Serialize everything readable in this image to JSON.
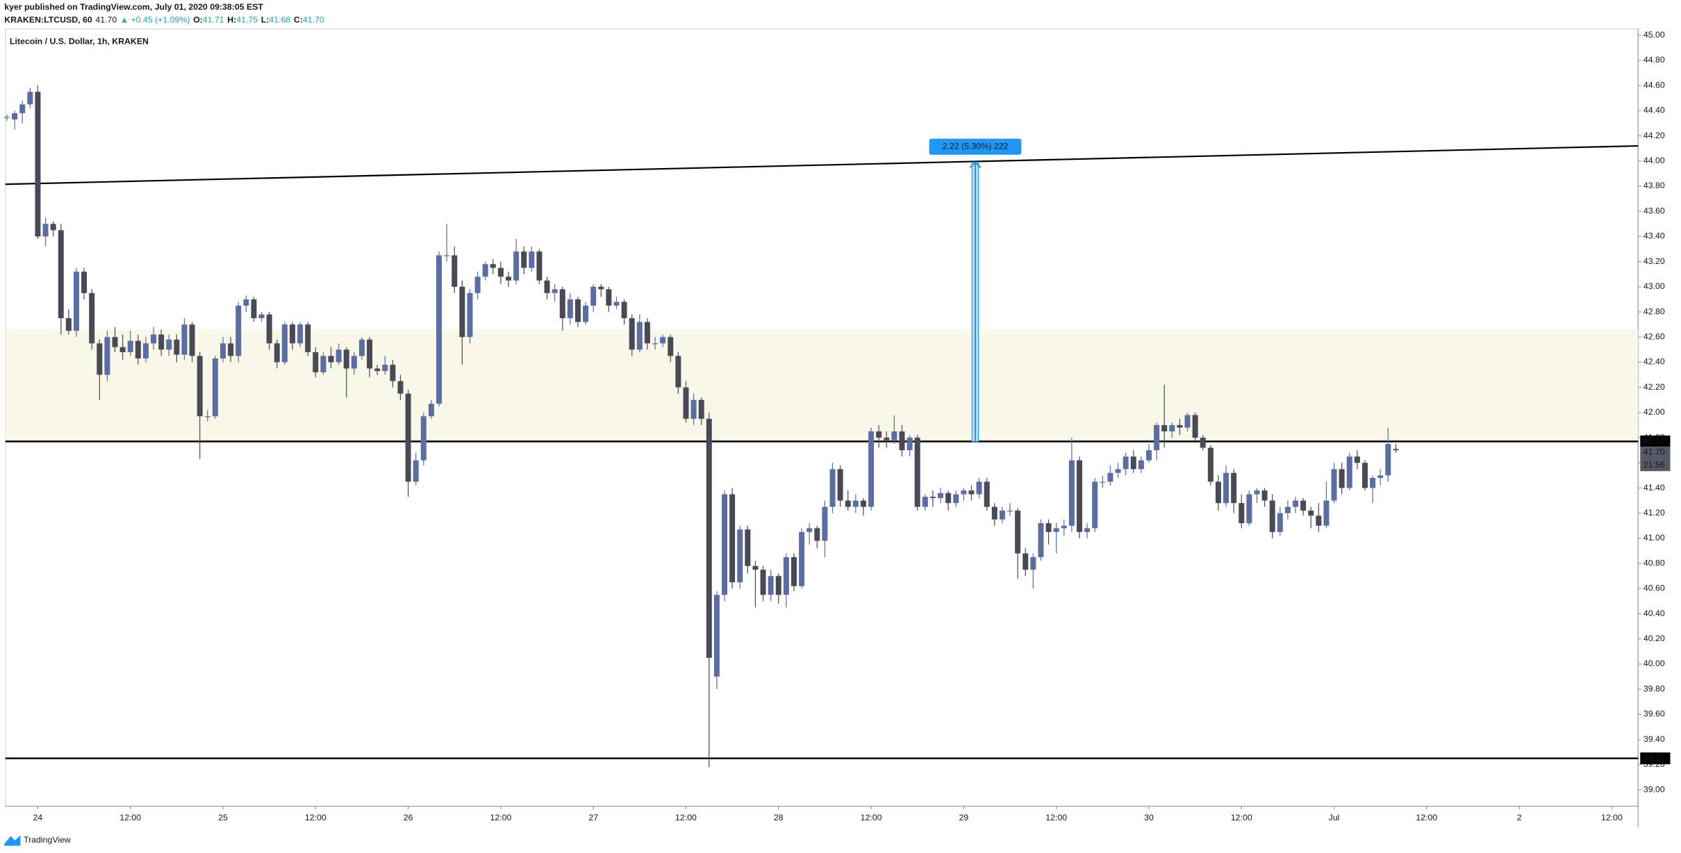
{
  "header": {
    "publisher": "kyer published on TradingView.com, July 01, 2020 09:38:05 EST",
    "symbol": "KRAKEN:LTCUSD, 60",
    "last": "41.70",
    "change": "▲ +0.45 (+1.09%)",
    "ohlc": [
      {
        "label": "O:",
        "value": "41.71"
      },
      {
        "label": "H:",
        "value": "41.75"
      },
      {
        "label": "L:",
        "value": "41.68"
      },
      {
        "label": "C:",
        "value": "41.70"
      }
    ]
  },
  "footer": {
    "brand": "TradingView"
  },
  "chart_data": {
    "type": "candlestick",
    "title": "Litecoin / U.S. Dollar, 1h, KRAKEN",
    "up_color": "#5b6ea3",
    "down_color": "#4a4a56",
    "grid": false,
    "xlim": [
      -4.2,
      207.4
    ],
    "ylim": [
      38.87,
      45.05
    ],
    "xticks": [
      {
        "value": 0,
        "label": "24"
      },
      {
        "value": 12,
        "label": "12:00"
      },
      {
        "value": 24,
        "label": "25"
      },
      {
        "value": 36,
        "label": "12:00"
      },
      {
        "value": 48,
        "label": "26"
      },
      {
        "value": 60,
        "label": "12:00"
      },
      {
        "value": 72,
        "label": "27"
      },
      {
        "value": 84,
        "label": "12:00"
      },
      {
        "value": 96,
        "label": "28"
      },
      {
        "value": 108,
        "label": "12:00"
      },
      {
        "value": 120,
        "label": "29"
      },
      {
        "value": 132,
        "label": "12:00"
      },
      {
        "value": 144,
        "label": "30"
      },
      {
        "value": 156,
        "label": "12:00"
      },
      {
        "value": 168,
        "label": "Jul"
      },
      {
        "value": 180,
        "label": "12:00"
      },
      {
        "value": 192,
        "label": "2"
      },
      {
        "value": 204,
        "label": "12:00"
      }
    ],
    "yticks": [
      {
        "value": 39,
        "label": "39.00"
      },
      {
        "value": 39.2,
        "label": "39.20"
      },
      {
        "value": 39.4,
        "label": "39.40"
      },
      {
        "value": 39.6,
        "label": "39.60"
      },
      {
        "value": 39.8,
        "label": "39.80"
      },
      {
        "value": 40,
        "label": "40.00"
      },
      {
        "value": 40.2,
        "label": "40.20"
      },
      {
        "value": 40.4,
        "label": "40.40"
      },
      {
        "value": 40.6,
        "label": "40.60"
      },
      {
        "value": 40.8,
        "label": "40.80"
      },
      {
        "value": 41,
        "label": "41.00"
      },
      {
        "value": 41.2,
        "label": "41.20"
      },
      {
        "value": 41.4,
        "label": "41.40"
      },
      {
        "value": 41.6,
        "label": "41.60"
      },
      {
        "value": 41.8,
        "label": "41.80"
      },
      {
        "value": 42,
        "label": "42.00"
      },
      {
        "value": 42.2,
        "label": "42.20"
      },
      {
        "value": 42.4,
        "label": "42.40"
      },
      {
        "value": 42.6,
        "label": "42.60"
      },
      {
        "value": 42.8,
        "label": "42.80"
      },
      {
        "value": 43,
        "label": "43.00"
      },
      {
        "value": 43.2,
        "label": "43.20"
      },
      {
        "value": 43.4,
        "label": "43.40"
      },
      {
        "value": 43.6,
        "label": "43.60"
      },
      {
        "value": 43.8,
        "label": "43.80"
      },
      {
        "value": 44,
        "label": "44.00"
      },
      {
        "value": 44.2,
        "label": "44.20"
      },
      {
        "value": 44.4,
        "label": "44.40"
      },
      {
        "value": 44.6,
        "label": "44.60"
      },
      {
        "value": 44.8,
        "label": "44.80"
      },
      {
        "value": 45,
        "label": "45.00"
      }
    ],
    "zone": [
      41.77,
      42.66
    ],
    "hlines": [
      41.77,
      39.25
    ],
    "trendline": {
      "x": [
        -4.2,
        207.4
      ],
      "y": [
        43.815,
        44.12
      ]
    },
    "measure": {
      "x": 121.5,
      "from": 41.77,
      "to": 43.99,
      "label": "2.22 (5.30%) 222"
    },
    "last_price": {
      "value": 41.7,
      "label": "41.70"
    },
    "countdown": "21:56",
    "x": [
      -4,
      -3,
      -2,
      -1,
      0,
      1,
      2,
      3,
      4,
      5,
      6,
      7,
      8,
      9,
      10,
      11,
      12,
      13,
      14,
      15,
      16,
      17,
      18,
      19,
      20,
      21,
      22,
      23,
      24,
      25,
      26,
      27,
      28,
      29,
      30,
      31,
      32,
      33,
      34,
      35,
      36,
      37,
      38,
      39,
      40,
      41,
      42,
      43,
      44,
      45,
      46,
      47,
      48,
      49,
      50,
      51,
      52,
      53,
      54,
      55,
      56,
      57,
      58,
      59,
      60,
      61,
      62,
      63,
      64,
      65,
      66,
      67,
      68,
      69,
      70,
      71,
      72,
      73,
      74,
      75,
      76,
      77,
      78,
      79,
      80,
      81,
      82,
      83,
      84,
      85,
      86,
      87,
      88,
      89,
      90,
      91,
      92,
      93,
      94,
      95,
      96,
      97,
      98,
      99,
      100,
      101,
      102,
      103,
      104,
      105,
      106,
      107,
      108,
      109,
      110,
      111,
      112,
      113,
      114,
      115,
      116,
      117,
      118,
      119,
      120,
      121,
      122,
      123,
      124,
      125,
      126,
      127,
      128,
      129,
      130,
      131,
      132,
      133,
      134,
      135,
      136,
      137,
      138,
      139,
      140,
      141,
      142,
      143,
      144,
      145,
      146,
      147,
      148,
      149,
      150,
      151,
      152,
      153,
      154,
      155,
      156,
      157,
      158,
      159,
      160,
      161,
      162,
      163,
      164,
      165,
      166,
      167,
      168,
      169,
      170,
      171,
      172,
      173,
      174,
      175,
      176
    ],
    "candles": [
      [
        44.35,
        44.37,
        44.32,
        44.35
      ],
      [
        44.33,
        44.4,
        44.25,
        44.38
      ],
      [
        44.38,
        44.48,
        44.3,
        44.45
      ],
      [
        44.45,
        44.58,
        44.42,
        44.55
      ],
      [
        44.55,
        44.6,
        43.38,
        43.4
      ],
      [
        43.4,
        43.55,
        43.32,
        43.5
      ],
      [
        43.5,
        43.52,
        43.4,
        43.45
      ],
      [
        43.45,
        43.5,
        42.62,
        42.75
      ],
      [
        42.75,
        42.82,
        42.62,
        42.65
      ],
      [
        42.65,
        43.15,
        42.6,
        43.12
      ],
      [
        43.12,
        43.15,
        42.9,
        42.95
      ],
      [
        42.95,
        42.98,
        42.5,
        42.55
      ],
      [
        42.55,
        42.58,
        42.1,
        42.3
      ],
      [
        42.3,
        42.65,
        42.25,
        42.6
      ],
      [
        42.6,
        42.68,
        42.48,
        42.52
      ],
      [
        42.52,
        42.62,
        42.42,
        42.48
      ],
      [
        42.48,
        42.65,
        42.45,
        42.57
      ],
      [
        42.57,
        42.62,
        42.38,
        42.43
      ],
      [
        42.43,
        42.6,
        42.4,
        42.55
      ],
      [
        42.55,
        42.68,
        42.5,
        42.62
      ],
      [
        42.62,
        42.66,
        42.45,
        42.5
      ],
      [
        42.5,
        42.62,
        42.45,
        42.58
      ],
      [
        42.58,
        42.62,
        42.4,
        42.46
      ],
      [
        42.46,
        42.75,
        42.42,
        42.7
      ],
      [
        42.7,
        42.72,
        42.4,
        42.45
      ],
      [
        42.45,
        42.48,
        41.63,
        41.97
      ],
      [
        41.97,
        42.02,
        41.93,
        41.97
      ],
      [
        41.97,
        42.45,
        41.95,
        42.43
      ],
      [
        42.43,
        42.6,
        42.4,
        42.55
      ],
      [
        42.55,
        42.6,
        42.4,
        42.45
      ],
      [
        42.45,
        42.88,
        42.4,
        42.85
      ],
      [
        42.85,
        42.93,
        42.8,
        42.9
      ],
      [
        42.9,
        42.92,
        42.72,
        42.75
      ],
      [
        42.75,
        42.8,
        42.72,
        42.78
      ],
      [
        42.78,
        42.8,
        42.5,
        42.55
      ],
      [
        42.55,
        42.58,
        42.35,
        42.4
      ],
      [
        42.4,
        42.72,
        42.38,
        42.7
      ],
      [
        42.7,
        42.72,
        42.5,
        42.55
      ],
      [
        42.55,
        42.72,
        42.52,
        42.7
      ],
      [
        42.7,
        42.72,
        42.45,
        42.48
      ],
      [
        42.48,
        42.52,
        42.28,
        42.32
      ],
      [
        42.32,
        42.48,
        42.3,
        42.45
      ],
      [
        42.45,
        42.52,
        42.35,
        42.4
      ],
      [
        42.4,
        42.55,
        42.38,
        42.5
      ],
      [
        42.5,
        42.52,
        42.12,
        42.35
      ],
      [
        42.35,
        42.48,
        42.3,
        42.45
      ],
      [
        42.45,
        42.6,
        42.42,
        42.58
      ],
      [
        42.58,
        42.6,
        42.28,
        42.35
      ],
      [
        42.35,
        42.38,
        42.3,
        42.33
      ],
      [
        42.33,
        42.45,
        42.3,
        42.38
      ],
      [
        42.38,
        42.42,
        42.2,
        42.25
      ],
      [
        42.25,
        42.3,
        42.1,
        42.15
      ],
      [
        42.15,
        42.18,
        41.33,
        41.45
      ],
      [
        41.45,
        41.68,
        41.42,
        41.62
      ],
      [
        41.62,
        42.0,
        41.58,
        41.97
      ],
      [
        41.97,
        42.1,
        41.95,
        42.07
      ],
      [
        42.07,
        43.28,
        42.05,
        43.25
      ],
      [
        43.25,
        43.5,
        43.2,
        43.25
      ],
      [
        43.25,
        43.32,
        42.95,
        43.0
      ],
      [
        43.0,
        43.05,
        42.38,
        42.6
      ],
      [
        42.6,
        42.98,
        42.55,
        42.95
      ],
      [
        42.95,
        43.12,
        42.9,
        43.08
      ],
      [
        43.08,
        43.2,
        43.05,
        43.18
      ],
      [
        43.18,
        43.22,
        43.1,
        43.15
      ],
      [
        43.15,
        43.2,
        43.02,
        43.08
      ],
      [
        43.08,
        43.12,
        43.0,
        43.05
      ],
      [
        43.05,
        43.38,
        43.02,
        43.28
      ],
      [
        43.28,
        43.32,
        43.1,
        43.15
      ],
      [
        43.15,
        43.32,
        43.12,
        43.28
      ],
      [
        43.28,
        43.3,
        43.02,
        43.05
      ],
      [
        43.05,
        43.08,
        42.9,
        42.95
      ],
      [
        42.95,
        43.02,
        42.88,
        42.98
      ],
      [
        42.98,
        43.0,
        42.65,
        42.75
      ],
      [
        42.75,
        42.95,
        42.7,
        42.9
      ],
      [
        42.9,
        42.92,
        42.68,
        42.72
      ],
      [
        42.72,
        42.88,
        42.7,
        42.85
      ],
      [
        42.85,
        43.02,
        42.8,
        43.0
      ],
      [
        43.0,
        43.02,
        42.92,
        42.98
      ],
      [
        42.98,
        43.0,
        42.8,
        42.85
      ],
      [
        42.85,
        42.92,
        42.82,
        42.88
      ],
      [
        42.88,
        42.9,
        42.7,
        42.75
      ],
      [
        42.75,
        42.78,
        42.45,
        42.5
      ],
      [
        42.5,
        42.78,
        42.48,
        42.72
      ],
      [
        42.72,
        42.75,
        42.5,
        42.55
      ],
      [
        42.55,
        42.6,
        42.5,
        42.55
      ],
      [
        42.55,
        42.62,
        42.52,
        42.6
      ],
      [
        42.6,
        42.62,
        42.4,
        42.45
      ],
      [
        42.45,
        42.48,
        42.15,
        42.2
      ],
      [
        42.2,
        42.25,
        41.92,
        41.95
      ],
      [
        41.95,
        42.15,
        41.9,
        42.1
      ],
      [
        42.1,
        42.12,
        41.9,
        41.95
      ],
      [
        41.95,
        42.0,
        39.18,
        40.05
      ],
      [
        39.9,
        40.58,
        39.8,
        40.55
      ],
      [
        40.55,
        41.38,
        40.5,
        41.35
      ],
      [
        41.35,
        41.4,
        40.6,
        40.65
      ],
      [
        40.65,
        41.1,
        40.6,
        41.07
      ],
      [
        41.07,
        41.1,
        40.72,
        40.78
      ],
      [
        40.78,
        40.82,
        40.45,
        40.75
      ],
      [
        40.75,
        40.78,
        40.5,
        40.55
      ],
      [
        40.55,
        40.75,
        40.5,
        40.7
      ],
      [
        40.7,
        40.72,
        40.48,
        40.55
      ],
      [
        40.55,
        40.88,
        40.45,
        40.85
      ],
      [
        40.85,
        40.88,
        40.58,
        40.62
      ],
      [
        40.62,
        41.08,
        40.6,
        41.05
      ],
      [
        41.05,
        41.12,
        40.95,
        41.08
      ],
      [
        41.08,
        41.1,
        40.92,
        40.98
      ],
      [
        40.98,
        41.3,
        40.85,
        41.25
      ],
      [
        41.25,
        41.6,
        41.2,
        41.55
      ],
      [
        41.55,
        41.58,
        41.25,
        41.3
      ],
      [
        41.3,
        41.38,
        41.22,
        41.25
      ],
      [
        41.25,
        41.35,
        41.2,
        41.3
      ],
      [
        41.3,
        41.32,
        41.18,
        41.25
      ],
      [
        41.25,
        41.88,
        41.22,
        41.85
      ],
      [
        41.85,
        41.9,
        41.72,
        41.8
      ],
      [
        41.8,
        41.85,
        41.72,
        41.78
      ],
      [
        41.78,
        41.98,
        41.75,
        41.85
      ],
      [
        41.85,
        41.9,
        41.65,
        41.7
      ],
      [
        41.7,
        41.82,
        41.65,
        41.8
      ],
      [
        41.8,
        41.82,
        41.22,
        41.25
      ],
      [
        41.25,
        41.35,
        41.22,
        41.33
      ],
      [
        41.33,
        41.38,
        41.25,
        41.32
      ],
      [
        41.32,
        41.4,
        41.28,
        41.36
      ],
      [
        41.36,
        41.38,
        41.22,
        41.28
      ],
      [
        41.28,
        41.38,
        41.25,
        41.35
      ],
      [
        41.35,
        41.4,
        41.3,
        41.38
      ],
      [
        41.38,
        41.42,
        41.3,
        41.35
      ],
      [
        41.35,
        41.48,
        41.32,
        41.45
      ],
      [
        41.45,
        41.48,
        41.22,
        41.25
      ],
      [
        41.25,
        41.28,
        41.1,
        41.15
      ],
      [
        41.15,
        41.25,
        41.12,
        41.22
      ],
      [
        41.22,
        41.28,
        41.18,
        41.22
      ],
      [
        41.22,
        41.24,
        40.68,
        40.88
      ],
      [
        40.88,
        40.92,
        40.7,
        40.75
      ],
      [
        40.75,
        40.88,
        40.6,
        40.85
      ],
      [
        40.85,
        41.15,
        40.82,
        41.12
      ],
      [
        41.12,
        41.15,
        40.95,
        41.05
      ],
      [
        41.05,
        41.12,
        40.88,
        41.08
      ],
      [
        41.08,
        41.15,
        41.02,
        41.1
      ],
      [
        41.1,
        41.8,
        41.05,
        41.62
      ],
      [
        41.62,
        41.65,
        41.0,
        41.05
      ],
      [
        41.05,
        41.12,
        41.0,
        41.08
      ],
      [
        41.08,
        41.48,
        41.05,
        41.45
      ],
      [
        41.45,
        41.5,
        41.4,
        41.45
      ],
      [
        41.45,
        41.58,
        41.42,
        41.52
      ],
      [
        41.52,
        41.6,
        41.48,
        41.55
      ],
      [
        41.55,
        41.68,
        41.5,
        41.65
      ],
      [
        41.65,
        41.7,
        41.52,
        41.55
      ],
      [
        41.55,
        41.65,
        41.52,
        41.62
      ],
      [
        41.62,
        41.75,
        41.6,
        41.7
      ],
      [
        41.7,
        41.92,
        41.62,
        41.9
      ],
      [
        41.9,
        42.22,
        41.72,
        41.85
      ],
      [
        41.85,
        41.92,
        41.8,
        41.9
      ],
      [
        41.9,
        41.95,
        41.82,
        41.88
      ],
      [
        41.88,
        42.0,
        41.85,
        41.98
      ],
      [
        41.98,
        42.0,
        41.78,
        41.8
      ],
      [
        41.8,
        41.82,
        41.7,
        41.72
      ],
      [
        41.72,
        41.74,
        41.42,
        41.45
      ],
      [
        41.45,
        41.5,
        41.22,
        41.28
      ],
      [
        41.28,
        41.58,
        41.25,
        41.52
      ],
      [
        41.52,
        41.55,
        41.2,
        41.28
      ],
      [
        41.28,
        41.35,
        41.08,
        41.12
      ],
      [
        41.12,
        41.38,
        41.1,
        41.35
      ],
      [
        41.35,
        41.4,
        41.28,
        41.38
      ],
      [
        41.38,
        41.4,
        41.25,
        41.3
      ],
      [
        41.3,
        41.35,
        41.0,
        41.05
      ],
      [
        41.05,
        41.25,
        41.02,
        41.2
      ],
      [
        41.2,
        41.3,
        41.15,
        41.25
      ],
      [
        41.25,
        41.33,
        41.2,
        41.3
      ],
      [
        41.3,
        41.32,
        41.18,
        41.22
      ],
      [
        41.22,
        41.25,
        41.08,
        41.18
      ],
      [
        41.18,
        41.28,
        41.05,
        41.1
      ],
      [
        41.1,
        41.45,
        41.08,
        41.3
      ],
      [
        41.3,
        41.6,
        41.28,
        41.55
      ],
      [
        41.55,
        41.6,
        41.35,
        41.4
      ],
      [
        41.4,
        41.68,
        41.38,
        41.65
      ],
      [
        41.65,
        41.7,
        41.55,
        41.6
      ],
      [
        41.6,
        41.62,
        41.38,
        41.4
      ],
      [
        41.4,
        41.5,
        41.28,
        41.48
      ],
      [
        41.48,
        41.55,
        41.42,
        41.5
      ],
      [
        41.5,
        41.88,
        41.45,
        41.75
      ],
      [
        41.71,
        41.75,
        41.68,
        41.7
      ]
    ]
  }
}
